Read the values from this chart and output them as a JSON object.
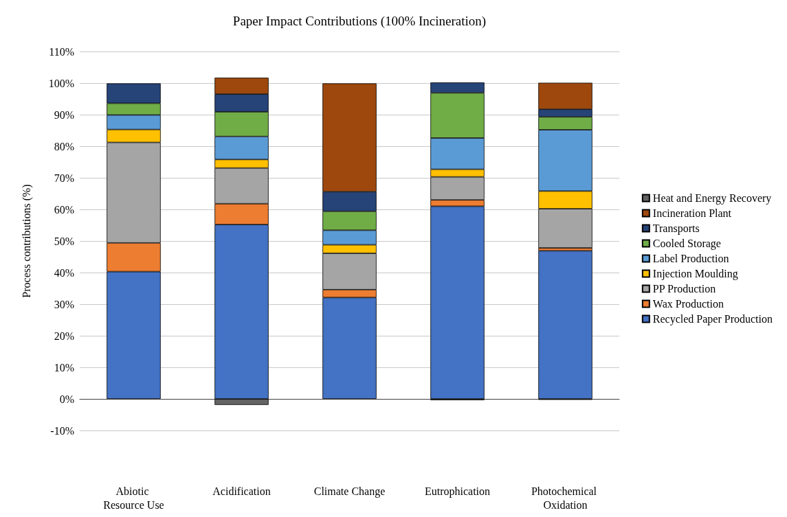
{
  "chart_data": {
    "type": "bar",
    "stacked": true,
    "title": "Paper Impact Contributions (100% Incineration)",
    "ylabel": "Process contributions (%)",
    "categories": [
      "Abiotic Resource Use",
      "Acidification",
      "Climate Change",
      "Eutrophication",
      "Photochemical Oxidation"
    ],
    "series": [
      {
        "name": "Recycled Paper Production",
        "color": "#4472c4",
        "values": [
          40.3,
          55.2,
          32.1,
          61.0,
          46.9
        ]
      },
      {
        "name": "Wax Production",
        "color": "#ed7d31",
        "values": [
          9.1,
          6.6,
          2.5,
          2.0,
          0.9
        ]
      },
      {
        "name": "PP Production",
        "color": "#a5a5a5",
        "values": [
          31.8,
          11.3,
          11.5,
          7.3,
          12.4
        ]
      },
      {
        "name": "Injection Moulding",
        "color": "#ffc000",
        "values": [
          4.1,
          2.7,
          2.7,
          2.4,
          5.6
        ]
      },
      {
        "name": "Label Production",
        "color": "#5b9bd5",
        "values": [
          4.6,
          7.3,
          4.6,
          9.9,
          19.4
        ]
      },
      {
        "name": "Cooled Storage",
        "color": "#70ad47",
        "values": [
          3.7,
          7.8,
          6.0,
          14.3,
          4.1
        ]
      },
      {
        "name": "Transports",
        "color": "#264478",
        "values": [
          6.3,
          5.6,
          6.2,
          3.3,
          2.4
        ]
      },
      {
        "name": "Incineration Plant",
        "color": "#9e480e",
        "values": [
          null,
          5.2,
          34.3,
          null,
          8.4
        ]
      },
      {
        "name": "Heat and Energy Recovery",
        "color": "#636363",
        "values": [
          null,
          -1.9,
          null,
          -0.4,
          -0.3
        ]
      }
    ],
    "ylim": [
      -10,
      110
    ],
    "yticks": [
      {
        "value": -10,
        "label": "-10%"
      },
      {
        "value": 0,
        "label": "0%"
      },
      {
        "value": 10,
        "label": "10%"
      },
      {
        "value": 20,
        "label": "20%"
      },
      {
        "value": 30,
        "label": "30%"
      },
      {
        "value": 40,
        "label": "40%"
      },
      {
        "value": 50,
        "label": "50%"
      },
      {
        "value": 60,
        "label": "60%"
      },
      {
        "value": 70,
        "label": "70%"
      },
      {
        "value": 80,
        "label": "80%"
      },
      {
        "value": 90,
        "label": "90%"
      },
      {
        "value": 100,
        "label": "100%"
      },
      {
        "value": 110,
        "label": "110%"
      }
    ],
    "grid": "y",
    "legend": "right"
  }
}
